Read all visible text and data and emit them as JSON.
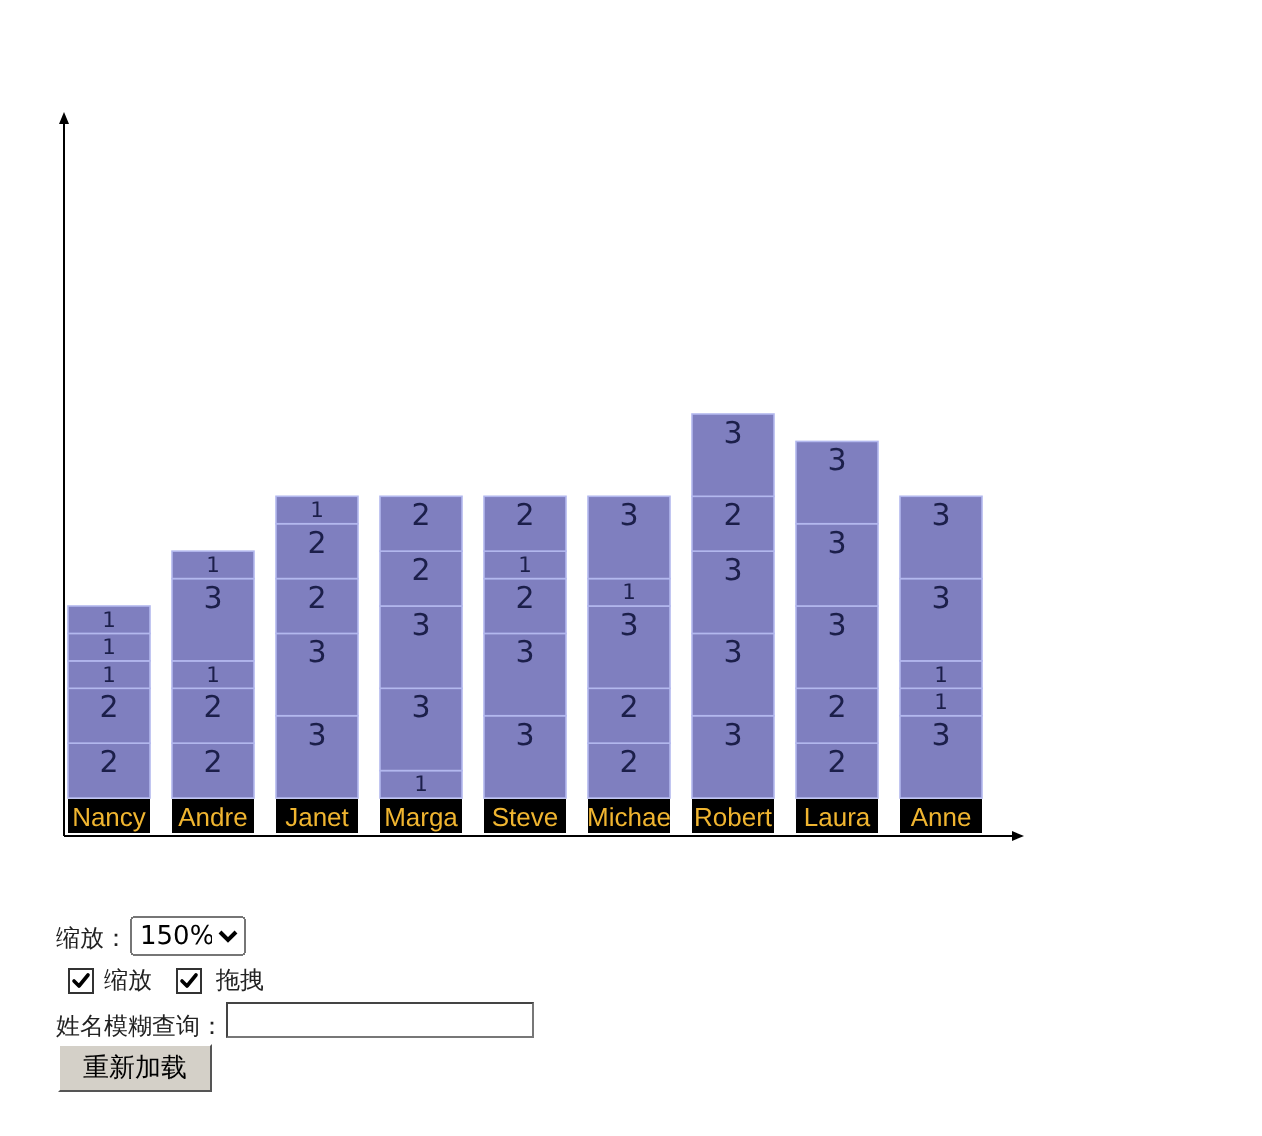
{
  "chart_data": {
    "type": "bar",
    "stacked": true,
    "data_labels": true,
    "categories": [
      "Nancy",
      "Andre",
      "Janet",
      "Marga",
      "Steve",
      "Michae",
      "Robert",
      "Laura",
      "Anne"
    ],
    "series": [
      {
        "color": "#7f7fbf",
        "values": [
          2,
          2,
          3,
          1,
          3,
          2,
          3,
          2,
          3
        ]
      },
      {
        "color": "#7f7fbf",
        "values": [
          2,
          2,
          3,
          3,
          3,
          2,
          3,
          2,
          1
        ]
      },
      {
        "color": "#7f7fbf",
        "values": [
          1,
          1,
          2,
          3,
          2,
          3,
          3,
          3,
          1
        ]
      },
      {
        "color": "#7f7fbf",
        "values": [
          1,
          3,
          2,
          2,
          1,
          1,
          2,
          3,
          3
        ]
      },
      {
        "color": "#7f7fbf",
        "values": [
          1,
          1,
          1,
          2,
          2,
          3,
          3,
          3,
          3
        ]
      }
    ],
    "annotations": [
      "缩放：",
      "150%",
      "缩放",
      "拖拽",
      "姓名模糊查询：",
      "重新加载"
    ]
  }
}
